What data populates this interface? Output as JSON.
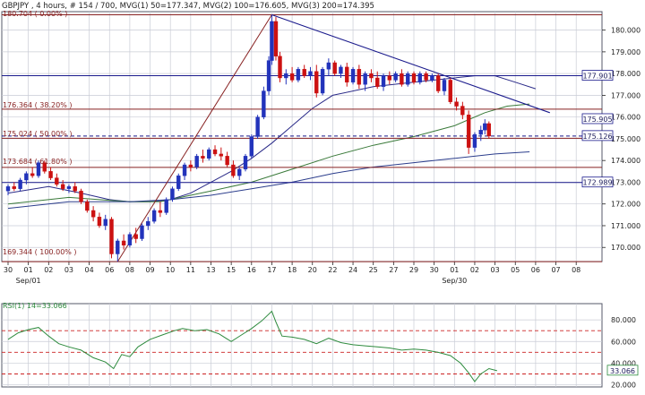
{
  "header": {
    "text": "GBPJPY , 4 hours, # 154 / 700, MVG(1) 50=177.347, MVG(2) 100=176.605, MVG(3) 200=174.395"
  },
  "colors": {
    "bull": "#2233bb",
    "bear": "#cc1111",
    "mvg1": "#2a2a88",
    "mvg2": "#3a7a3a",
    "mvg3": "#2b3d8c",
    "fib_line": "#882222",
    "hline": "#1a1a8c",
    "rsi": "#2e8b3e",
    "rsi_ref": "#cc2222",
    "grid": "#c9ccd6",
    "axis": "#222222",
    "frame": "#55586a"
  },
  "chart_data": [
    {
      "type": "candlestick",
      "symbol": "GBPJPY",
      "timeframe": "4 hours",
      "bar_counter": "# 154 / 700",
      "ylim": [
        169.35,
        180.85
      ],
      "y_ticks": [
        "180.000",
        "179.000",
        "178.000",
        "177.000",
        "176.000",
        "175.000",
        "174.000",
        "173.000",
        "172.000",
        "171.000",
        "170.000"
      ],
      "y_tick_values": [
        180,
        179,
        178,
        177,
        176,
        175,
        174,
        173,
        172,
        171,
        170
      ],
      "x_tick_labels": [
        "30",
        "01",
        "02",
        "03",
        "04",
        "06",
        "08",
        "09",
        "10",
        "11",
        "13",
        "15",
        "16",
        "17",
        "18",
        "20",
        "22",
        "24",
        "25",
        "27",
        "29",
        "30",
        "01",
        "02",
        "03",
        "05",
        "06",
        "07",
        "08"
      ],
      "x_period_labels": [
        {
          "label": "Sep/01",
          "at_tick": 1
        },
        {
          "label": "Sep/30",
          "at_tick": 22
        }
      ],
      "fib_levels": [
        {
          "label": "180.704 ( 0.00% )",
          "value": 180.704
        },
        {
          "label": "176.364 ( 38.20% )",
          "value": 176.364
        },
        {
          "label": "175.024 ( 50.00% )",
          "value": 175.024
        },
        {
          "label": "173.684 ( 61.80% )",
          "value": 173.684
        },
        {
          "label": "169.344 ( 100.00% )",
          "value": 169.344
        }
      ],
      "price_boxes": [
        {
          "label": "177.901",
          "value": 177.901,
          "note": "horizontal line"
        },
        {
          "label": "175.905",
          "value": 175.905,
          "note": "trend line"
        },
        {
          "label": "175.126",
          "value": 175.126,
          "note": "last price"
        },
        {
          "label": "172.989",
          "value": 172.989,
          "note": "horizontal line"
        }
      ],
      "mvg": [
        {
          "label": "MVG(1) 50",
          "value": 177.347
        },
        {
          "label": "MVG(2) 100",
          "value": 176.605
        },
        {
          "label": "MVG(3) 200",
          "value": 174.395
        }
      ],
      "mvg_paths": {
        "mvg1": [
          [
            0,
            172.5
          ],
          [
            2,
            172.8
          ],
          [
            3.6,
            172.5
          ],
          [
            5,
            172.2
          ],
          [
            6,
            172.1
          ],
          [
            7,
            172.1
          ],
          [
            8,
            172.2
          ],
          [
            9,
            172.5
          ],
          [
            10,
            173.0
          ],
          [
            11,
            173.5
          ],
          [
            12,
            174.1
          ],
          [
            13,
            174.8
          ],
          [
            14,
            175.6
          ],
          [
            15,
            176.4
          ],
          [
            16,
            177.0
          ],
          [
            18,
            177.4
          ],
          [
            20,
            177.6
          ],
          [
            22,
            177.8
          ],
          [
            23,
            177.9
          ],
          [
            24,
            177.9
          ],
          [
            25,
            177.6
          ],
          [
            26,
            177.3
          ]
        ],
        "mvg2": [
          [
            0,
            172.0
          ],
          [
            3,
            172.3
          ],
          [
            6,
            172.1
          ],
          [
            7.5,
            172.1
          ],
          [
            9,
            172.4
          ],
          [
            10,
            172.6
          ],
          [
            12,
            173.0
          ],
          [
            14,
            173.6
          ],
          [
            16,
            174.2
          ],
          [
            18,
            174.7
          ],
          [
            20,
            175.1
          ],
          [
            22,
            175.6
          ],
          [
            23.5,
            176.2
          ],
          [
            24.6,
            176.5
          ],
          [
            25.7,
            176.6
          ]
        ],
        "mvg3": [
          [
            0,
            171.8
          ],
          [
            3,
            172.1
          ],
          [
            6,
            172.1
          ],
          [
            8,
            172.2
          ],
          [
            10,
            172.4
          ],
          [
            12,
            172.7
          ],
          [
            14,
            173.0
          ],
          [
            16,
            173.4
          ],
          [
            18,
            173.7
          ],
          [
            20,
            173.9
          ],
          [
            22,
            174.1
          ],
          [
            24,
            174.3
          ],
          [
            25.7,
            174.4
          ]
        ]
      },
      "fib_swing_line": [
        [
          5.4,
          169.344
        ],
        [
          13.0,
          180.704
        ]
      ],
      "trend_line": [
        [
          13.0,
          180.704
        ],
        [
          26.7,
          176.2
        ]
      ],
      "candles": [
        {
          "t": 0.0,
          "o": 172.6,
          "h": 172.9,
          "l": 172.4,
          "c": 172.8
        },
        {
          "t": 0.3,
          "o": 172.8,
          "h": 173.0,
          "l": 172.6,
          "c": 172.7
        },
        {
          "t": 0.6,
          "o": 172.7,
          "h": 173.2,
          "l": 172.6,
          "c": 173.1
        },
        {
          "t": 0.9,
          "o": 173.1,
          "h": 173.5,
          "l": 172.9,
          "c": 173.4
        },
        {
          "t": 1.2,
          "o": 173.4,
          "h": 173.7,
          "l": 173.2,
          "c": 173.3
        },
        {
          "t": 1.5,
          "o": 173.3,
          "h": 174.0,
          "l": 173.2,
          "c": 173.9
        },
        {
          "t": 1.8,
          "o": 173.9,
          "h": 174.0,
          "l": 173.4,
          "c": 173.5
        },
        {
          "t": 2.1,
          "o": 173.5,
          "h": 173.7,
          "l": 173.1,
          "c": 173.2
        },
        {
          "t": 2.4,
          "o": 173.2,
          "h": 173.4,
          "l": 172.8,
          "c": 172.9
        },
        {
          "t": 2.7,
          "o": 172.9,
          "h": 173.1,
          "l": 172.6,
          "c": 172.7
        },
        {
          "t": 3.0,
          "o": 172.7,
          "h": 172.9,
          "l": 172.5,
          "c": 172.8
        },
        {
          "t": 3.3,
          "o": 172.8,
          "h": 173.0,
          "l": 172.5,
          "c": 172.6
        },
        {
          "t": 3.6,
          "o": 172.6,
          "h": 172.7,
          "l": 172.0,
          "c": 172.1
        },
        {
          "t": 3.9,
          "o": 172.1,
          "h": 172.2,
          "l": 171.6,
          "c": 171.7
        },
        {
          "t": 4.2,
          "o": 171.7,
          "h": 171.9,
          "l": 171.2,
          "c": 171.4
        },
        {
          "t": 4.5,
          "o": 171.4,
          "h": 171.6,
          "l": 170.9,
          "c": 171.0
        },
        {
          "t": 4.8,
          "o": 171.0,
          "h": 171.5,
          "l": 170.8,
          "c": 171.3
        },
        {
          "t": 5.1,
          "o": 171.3,
          "h": 171.4,
          "l": 169.5,
          "c": 169.7
        },
        {
          "t": 5.4,
          "o": 169.7,
          "h": 170.4,
          "l": 169.34,
          "c": 170.3
        },
        {
          "t": 5.7,
          "o": 170.3,
          "h": 170.6,
          "l": 169.9,
          "c": 170.1
        },
        {
          "t": 6.0,
          "o": 170.1,
          "h": 170.7,
          "l": 170.0,
          "c": 170.6
        },
        {
          "t": 6.3,
          "o": 170.6,
          "h": 170.9,
          "l": 170.2,
          "c": 170.4
        },
        {
          "t": 6.6,
          "o": 170.4,
          "h": 171.1,
          "l": 170.3,
          "c": 171.0
        },
        {
          "t": 6.9,
          "o": 171.0,
          "h": 171.4,
          "l": 170.8,
          "c": 171.2
        },
        {
          "t": 7.2,
          "o": 171.2,
          "h": 171.8,
          "l": 171.1,
          "c": 171.7
        },
        {
          "t": 7.5,
          "o": 171.7,
          "h": 172.1,
          "l": 171.4,
          "c": 171.6
        },
        {
          "t": 7.8,
          "o": 171.6,
          "h": 172.3,
          "l": 171.5,
          "c": 172.2
        },
        {
          "t": 8.1,
          "o": 172.2,
          "h": 172.8,
          "l": 172.1,
          "c": 172.7
        },
        {
          "t": 8.4,
          "o": 172.7,
          "h": 173.4,
          "l": 172.6,
          "c": 173.3
        },
        {
          "t": 8.7,
          "o": 173.3,
          "h": 173.9,
          "l": 173.1,
          "c": 173.8
        },
        {
          "t": 9.0,
          "o": 173.8,
          "h": 174.0,
          "l": 173.5,
          "c": 173.7
        },
        {
          "t": 9.3,
          "o": 173.7,
          "h": 174.3,
          "l": 173.6,
          "c": 174.2
        },
        {
          "t": 9.6,
          "o": 174.2,
          "h": 174.5,
          "l": 173.9,
          "c": 174.1
        },
        {
          "t": 9.9,
          "o": 174.1,
          "h": 174.6,
          "l": 174.0,
          "c": 174.5
        },
        {
          "t": 10.2,
          "o": 174.5,
          "h": 174.7,
          "l": 174.2,
          "c": 174.3
        },
        {
          "t": 10.5,
          "o": 174.3,
          "h": 174.6,
          "l": 174.0,
          "c": 174.2
        },
        {
          "t": 10.8,
          "o": 174.2,
          "h": 174.4,
          "l": 173.7,
          "c": 173.8
        },
        {
          "t": 11.1,
          "o": 173.8,
          "h": 174.0,
          "l": 173.2,
          "c": 173.3
        },
        {
          "t": 11.4,
          "o": 173.3,
          "h": 173.7,
          "l": 173.1,
          "c": 173.6
        },
        {
          "t": 11.7,
          "o": 173.6,
          "h": 174.3,
          "l": 173.5,
          "c": 174.2
        },
        {
          "t": 12.0,
          "o": 174.2,
          "h": 175.2,
          "l": 174.1,
          "c": 175.1
        },
        {
          "t": 12.3,
          "o": 175.1,
          "h": 176.1,
          "l": 175.0,
          "c": 176.0
        },
        {
          "t": 12.6,
          "o": 176.0,
          "h": 177.4,
          "l": 175.9,
          "c": 177.2
        },
        {
          "t": 12.85,
          "o": 177.2,
          "h": 178.8,
          "l": 177.0,
          "c": 178.6
        },
        {
          "t": 13.0,
          "o": 178.6,
          "h": 180.704,
          "l": 178.4,
          "c": 180.4
        },
        {
          "t": 13.2,
          "o": 180.4,
          "h": 180.6,
          "l": 178.6,
          "c": 178.8
        },
        {
          "t": 13.4,
          "o": 178.8,
          "h": 179.0,
          "l": 177.6,
          "c": 177.8
        },
        {
          "t": 13.7,
          "o": 177.8,
          "h": 178.2,
          "l": 177.5,
          "c": 178.0
        },
        {
          "t": 14.0,
          "o": 178.0,
          "h": 178.3,
          "l": 177.6,
          "c": 177.7
        },
        {
          "t": 14.3,
          "o": 177.7,
          "h": 178.3,
          "l": 177.6,
          "c": 178.2
        },
        {
          "t": 14.6,
          "o": 178.2,
          "h": 178.4,
          "l": 177.8,
          "c": 177.9
        },
        {
          "t": 14.9,
          "o": 177.9,
          "h": 178.3,
          "l": 177.7,
          "c": 178.1
        },
        {
          "t": 15.2,
          "o": 178.1,
          "h": 178.4,
          "l": 176.9,
          "c": 177.1
        },
        {
          "t": 15.5,
          "o": 177.1,
          "h": 178.3,
          "l": 177.0,
          "c": 178.2
        },
        {
          "t": 15.8,
          "o": 178.2,
          "h": 178.7,
          "l": 177.9,
          "c": 178.5
        },
        {
          "t": 16.1,
          "o": 178.5,
          "h": 178.6,
          "l": 177.9,
          "c": 178.0
        },
        {
          "t": 16.4,
          "o": 178.0,
          "h": 178.4,
          "l": 177.8,
          "c": 178.3
        },
        {
          "t": 16.7,
          "o": 178.3,
          "h": 178.5,
          "l": 177.4,
          "c": 177.6
        },
        {
          "t": 17.0,
          "o": 177.6,
          "h": 178.3,
          "l": 177.5,
          "c": 178.2
        },
        {
          "t": 17.3,
          "o": 178.2,
          "h": 178.4,
          "l": 177.3,
          "c": 177.5
        },
        {
          "t": 17.6,
          "o": 177.5,
          "h": 178.1,
          "l": 177.2,
          "c": 178.0
        },
        {
          "t": 17.9,
          "o": 178.0,
          "h": 178.2,
          "l": 177.6,
          "c": 177.8
        },
        {
          "t": 18.2,
          "o": 177.8,
          "h": 178.1,
          "l": 177.3,
          "c": 177.4
        },
        {
          "t": 18.5,
          "o": 177.4,
          "h": 178.0,
          "l": 177.2,
          "c": 177.9
        },
        {
          "t": 18.8,
          "o": 177.9,
          "h": 178.1,
          "l": 177.5,
          "c": 177.7
        },
        {
          "t": 19.1,
          "o": 177.7,
          "h": 178.1,
          "l": 177.6,
          "c": 178.0
        },
        {
          "t": 19.4,
          "o": 178.0,
          "h": 178.2,
          "l": 177.4,
          "c": 177.5
        },
        {
          "t": 19.7,
          "o": 177.5,
          "h": 178.1,
          "l": 177.4,
          "c": 178.0
        },
        {
          "t": 20.0,
          "o": 178.0,
          "h": 178.1,
          "l": 177.5,
          "c": 177.6
        },
        {
          "t": 20.3,
          "o": 177.6,
          "h": 178.1,
          "l": 177.5,
          "c": 178.0
        },
        {
          "t": 20.6,
          "o": 178.0,
          "h": 178.1,
          "l": 177.6,
          "c": 177.7
        },
        {
          "t": 20.9,
          "o": 177.7,
          "h": 178.0,
          "l": 177.6,
          "c": 177.9
        },
        {
          "t": 21.2,
          "o": 177.9,
          "h": 178.0,
          "l": 177.1,
          "c": 177.2
        },
        {
          "t": 21.5,
          "o": 177.2,
          "h": 177.8,
          "l": 177.0,
          "c": 177.7
        },
        {
          "t": 21.8,
          "o": 177.7,
          "h": 177.8,
          "l": 176.6,
          "c": 176.7
        },
        {
          "t": 22.1,
          "o": 176.7,
          "h": 176.9,
          "l": 176.3,
          "c": 176.5
        },
        {
          "t": 22.4,
          "o": 176.5,
          "h": 176.7,
          "l": 175.9,
          "c": 176.1
        },
        {
          "t": 22.7,
          "o": 176.1,
          "h": 176.3,
          "l": 174.3,
          "c": 174.6
        },
        {
          "t": 23.0,
          "o": 174.6,
          "h": 175.3,
          "l": 174.4,
          "c": 175.2
        },
        {
          "t": 23.3,
          "o": 175.2,
          "h": 175.6,
          "l": 174.9,
          "c": 175.4
        },
        {
          "t": 23.5,
          "o": 175.4,
          "h": 175.9,
          "l": 175.2,
          "c": 175.7
        },
        {
          "t": 23.7,
          "o": 175.7,
          "h": 175.8,
          "l": 175.0,
          "c": 175.126
        }
      ],
      "rsi": {
        "label": "RSI(1) 14=33.066",
        "value": 33.066,
        "ylim": [
          18,
          95
        ],
        "y_ticks": [
          "80.000",
          "60.000",
          "40.000",
          "20.000"
        ],
        "y_tick_values": [
          80,
          60,
          40,
          20
        ],
        "ref_levels": [
          70,
          50,
          30
        ],
        "path": [
          [
            0,
            62
          ],
          [
            0.5,
            68
          ],
          [
            1,
            71
          ],
          [
            1.5,
            73
          ],
          [
            2,
            65
          ],
          [
            2.5,
            58
          ],
          [
            3,
            55
          ],
          [
            3.6,
            52
          ],
          [
            4.2,
            45
          ],
          [
            4.8,
            41
          ],
          [
            5.2,
            35
          ],
          [
            5.6,
            48
          ],
          [
            6,
            46
          ],
          [
            6.4,
            55
          ],
          [
            7,
            62
          ],
          [
            7.6,
            66
          ],
          [
            8.2,
            70
          ],
          [
            8.6,
            72
          ],
          [
            9.2,
            70
          ],
          [
            9.8,
            71
          ],
          [
            10.4,
            67
          ],
          [
            11,
            60
          ],
          [
            11.5,
            66
          ],
          [
            12,
            72
          ],
          [
            12.5,
            79
          ],
          [
            13.0,
            88
          ],
          [
            13.2,
            78
          ],
          [
            13.5,
            65
          ],
          [
            14,
            64
          ],
          [
            14.6,
            62
          ],
          [
            15.2,
            58
          ],
          [
            15.8,
            63
          ],
          [
            16.4,
            59
          ],
          [
            17,
            57
          ],
          [
            17.6,
            56
          ],
          [
            18.2,
            55
          ],
          [
            18.8,
            54
          ],
          [
            19.4,
            52
          ],
          [
            20,
            53
          ],
          [
            20.6,
            52
          ],
          [
            21.2,
            50
          ],
          [
            21.8,
            47
          ],
          [
            22.3,
            40
          ],
          [
            22.7,
            31
          ],
          [
            23.0,
            23
          ],
          [
            23.3,
            30
          ],
          [
            23.7,
            35
          ],
          [
            24.1,
            33
          ]
        ]
      }
    }
  ]
}
